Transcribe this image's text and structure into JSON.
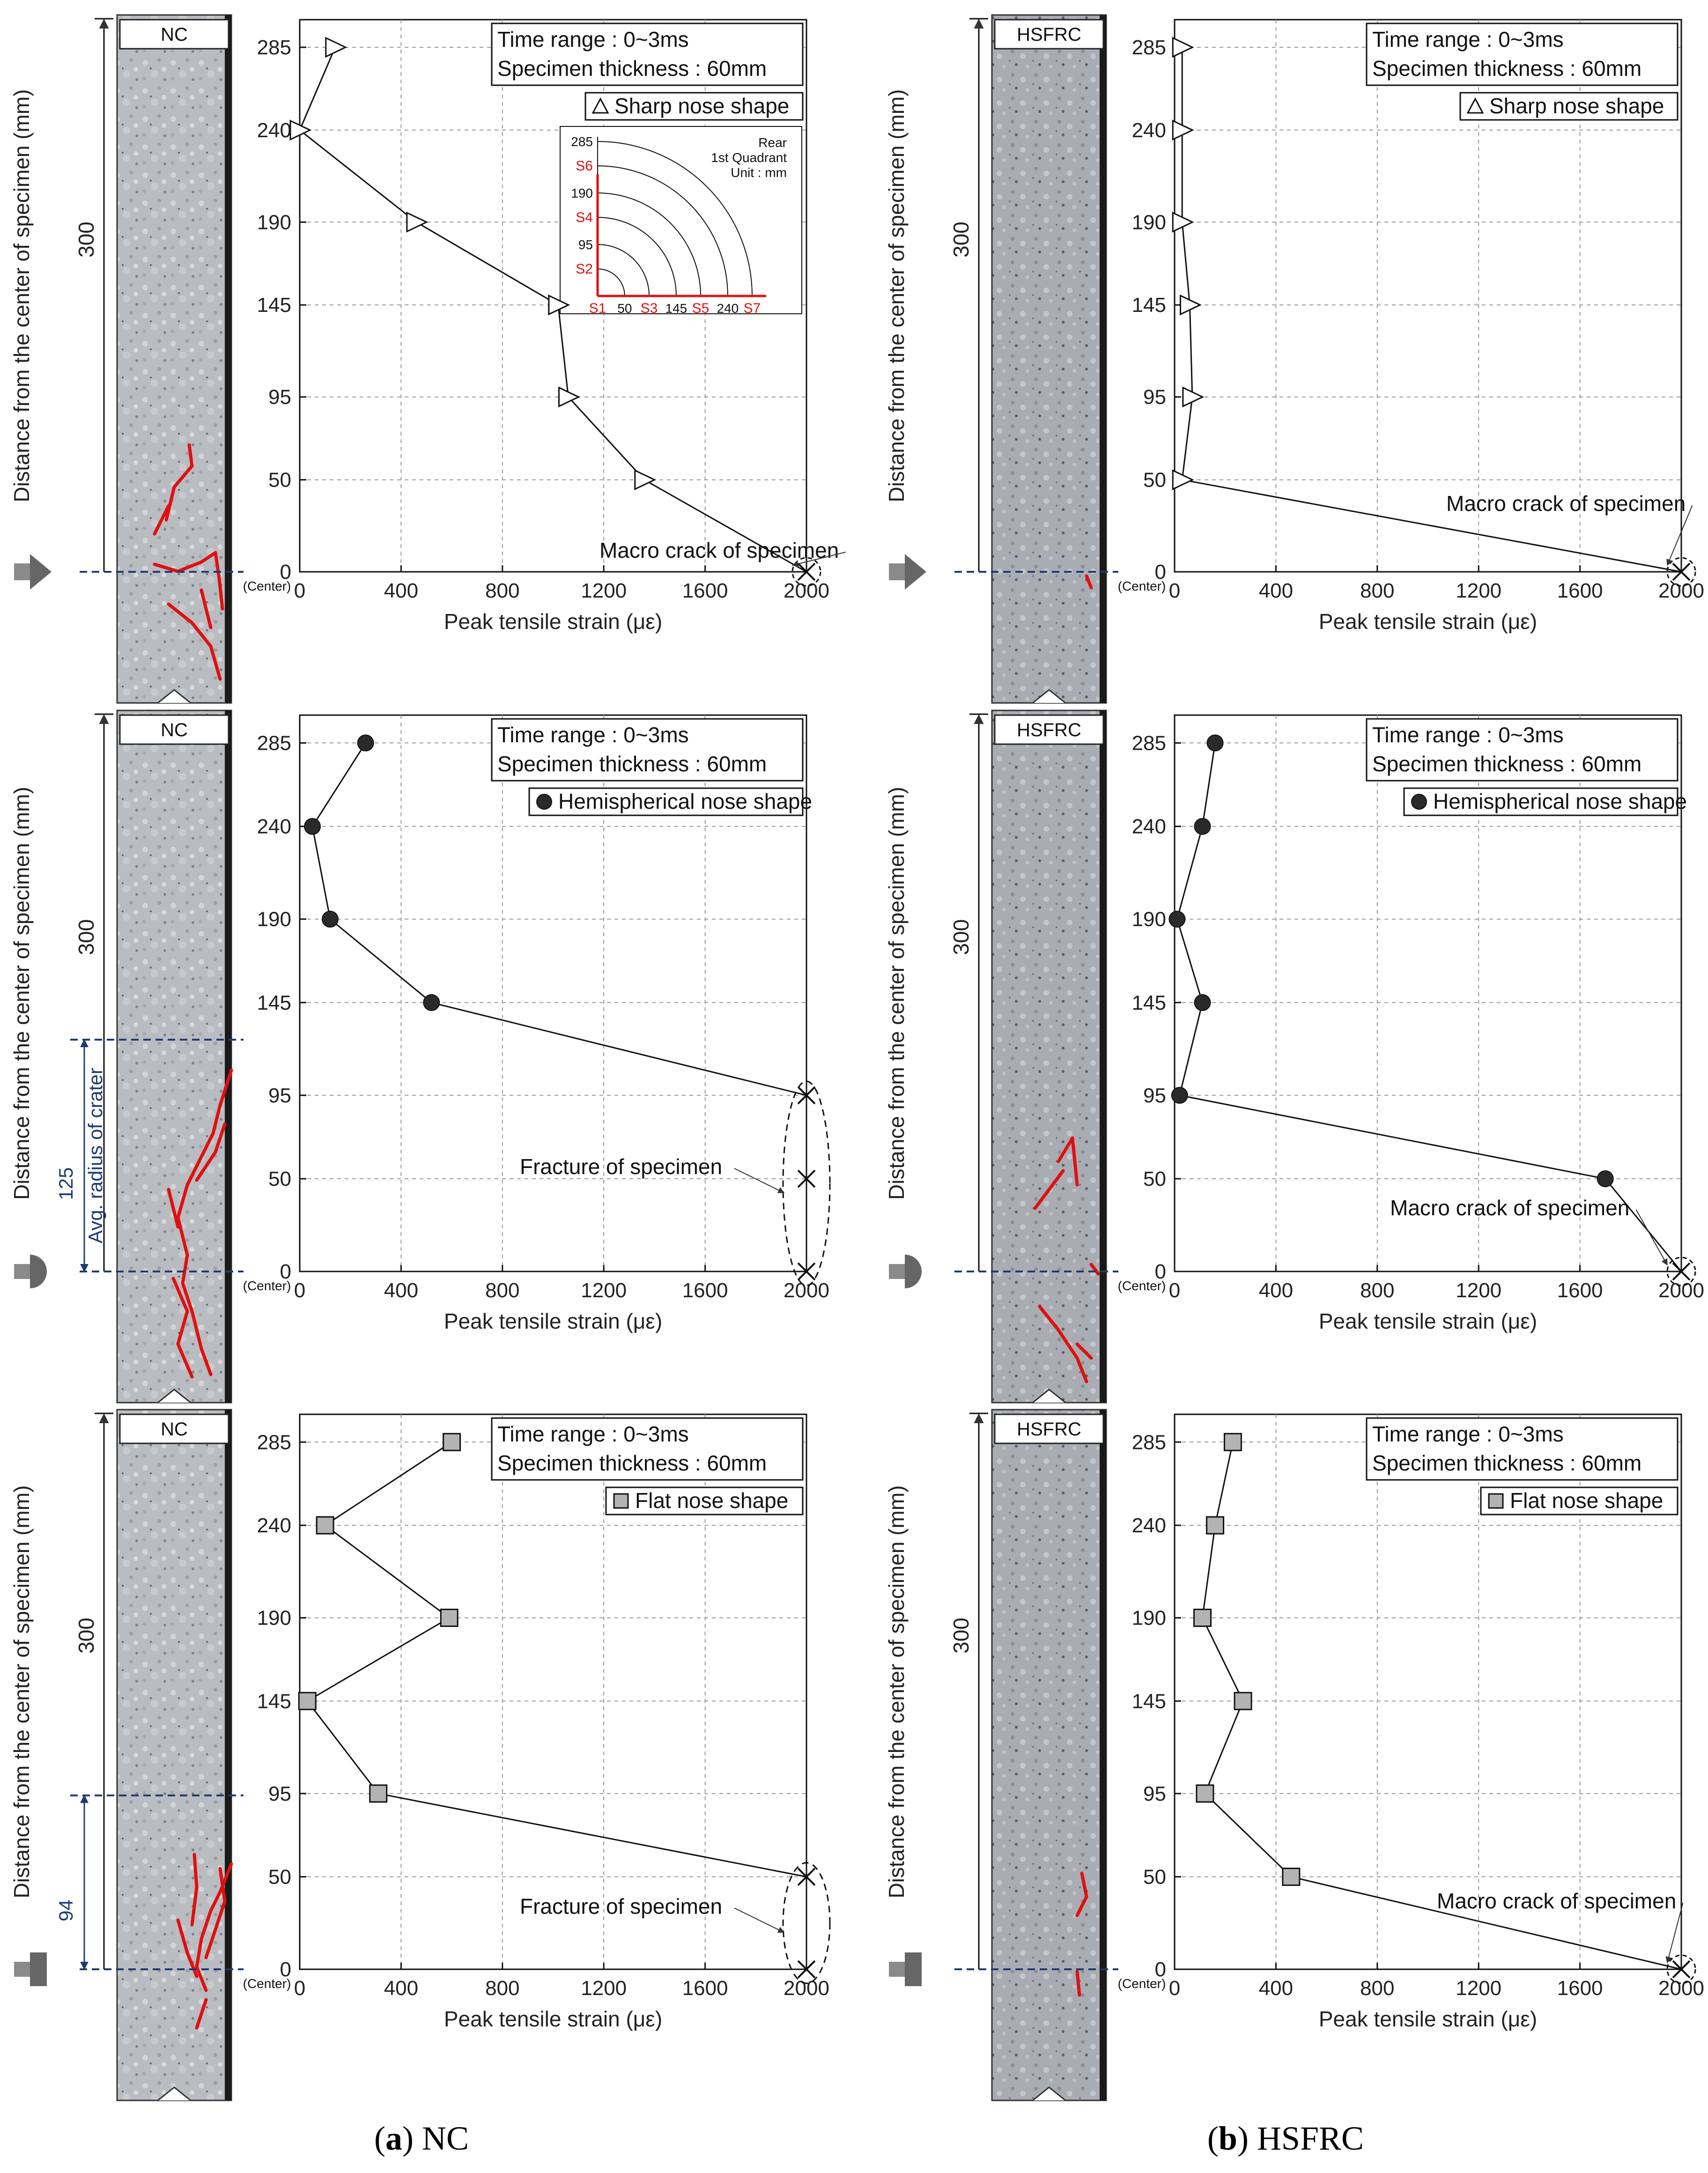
{
  "captions": {
    "a_letter": "a",
    "a_text": "NC",
    "b_letter": "b",
    "b_text": "HSFRC"
  },
  "labels": {
    "y_axis": "Distance from the center of specimen (mm)",
    "x_axis": "Peak tensile strain (με)",
    "center": "(Center)",
    "length": "300",
    "time_range": "Time range : 0~3ms",
    "thickness": "Specimen thickness : 60mm"
  },
  "inset": {
    "rear": "Rear",
    "quadrant": "1st Quadrant",
    "unit": "Unit : mm",
    "y_ticks": [
      "285",
      "S6",
      "190",
      "S4",
      "95",
      "S2"
    ],
    "x_ticks": [
      "S1",
      "50",
      "S3",
      "145",
      "S5",
      "240",
      "S7"
    ]
  },
  "colors": {
    "crack": "#e01010",
    "dashed_line": "#1f3a73",
    "marker_grey": "#b3b3b3",
    "marker_dark": "#2a2a2a"
  },
  "chart_data": [
    {
      "id": "nc-sharp",
      "type": "line",
      "specimen": "NC",
      "legend": "Sharp nose shape",
      "marker": "triangle",
      "title": "",
      "xlabel": "Peak tensile strain (με)",
      "ylabel": "Distance from the center of specimen (mm)",
      "xlim": [
        0,
        2000
      ],
      "ylim": [
        0,
        300
      ],
      "x_ticks": [
        0,
        400,
        800,
        1200,
        1600,
        2000
      ],
      "y_ticks": [
        0,
        50,
        95,
        145,
        190,
        240,
        285
      ],
      "series": [
        {
          "name": "Sharp nose shape",
          "x": [
            2000,
            1360,
            1060,
            1020,
            460,
            0,
            140
          ],
          "y": [
            0,
            50,
            95,
            145,
            190,
            240,
            285
          ]
        }
      ],
      "annotation": "Macro crack of specimen",
      "failure": "macro",
      "crater_radius": null
    },
    {
      "id": "hs-sharp",
      "type": "line",
      "specimen": "HSFRC",
      "legend": "Sharp nose shape",
      "marker": "triangle",
      "title": "",
      "xlabel": "Peak tensile strain (με)",
      "ylabel": "Distance from the center of specimen (mm)",
      "xlim": [
        0,
        2000
      ],
      "ylim": [
        0,
        300
      ],
      "x_ticks": [
        0,
        400,
        800,
        1200,
        1600,
        2000
      ],
      "y_ticks": [
        0,
        50,
        95,
        145,
        190,
        240,
        285
      ],
      "series": [
        {
          "name": "Sharp nose shape",
          "x": [
            2000,
            30,
            70,
            60,
            30,
            30,
            30
          ],
          "y": [
            0,
            50,
            95,
            145,
            190,
            240,
            285
          ]
        }
      ],
      "annotation": "Macro crack of specimen",
      "failure": "macro",
      "crater_radius": null
    },
    {
      "id": "nc-hemi",
      "type": "line",
      "specimen": "NC",
      "legend": "Hemispherical nose shape",
      "marker": "circle",
      "title": "",
      "xlabel": "Peak tensile strain (με)",
      "ylabel": "Distance from the center of specimen (mm)",
      "xlim": [
        0,
        2000
      ],
      "ylim": [
        0,
        300
      ],
      "x_ticks": [
        0,
        400,
        800,
        1200,
        1600,
        2000
      ],
      "y_ticks": [
        0,
        50,
        95,
        145,
        190,
        240,
        285
      ],
      "series": [
        {
          "name": "Hemispherical nose shape",
          "x": [
            2000,
            2000,
            2000,
            520,
            120,
            50,
            260
          ],
          "y": [
            0,
            50,
            95,
            145,
            190,
            240,
            285
          ]
        }
      ],
      "annotation": "Fracture of specimen",
      "failure": "fracture",
      "fracture_points": [
        0,
        50,
        95
      ],
      "crater_radius": 125,
      "crater_label": "Avg. radius of crater"
    },
    {
      "id": "hs-hemi",
      "type": "line",
      "specimen": "HSFRC",
      "legend": "Hemispherical nose shape",
      "marker": "circle",
      "title": "",
      "xlabel": "Peak tensile strain (με)",
      "ylabel": "Distance from the center of specimen (mm)",
      "xlim": [
        0,
        2000
      ],
      "ylim": [
        0,
        300
      ],
      "x_ticks": [
        0,
        400,
        800,
        1200,
        1600,
        2000
      ],
      "y_ticks": [
        0,
        50,
        95,
        145,
        190,
        240,
        285
      ],
      "series": [
        {
          "name": "Hemispherical nose shape",
          "x": [
            2000,
            1700,
            20,
            110,
            10,
            110,
            160
          ],
          "y": [
            0,
            50,
            95,
            145,
            190,
            240,
            285
          ]
        }
      ],
      "annotation": "Macro crack of specimen",
      "failure": "macro",
      "crater_radius": null
    },
    {
      "id": "nc-flat",
      "type": "line",
      "specimen": "NC",
      "legend": "Flat nose shape",
      "marker": "square",
      "title": "",
      "xlabel": "Peak tensile strain (με)",
      "ylabel": "Distance from the center of specimen (mm)",
      "xlim": [
        0,
        2000
      ],
      "ylim": [
        0,
        300
      ],
      "x_ticks": [
        0,
        400,
        800,
        1200,
        1600,
        2000
      ],
      "y_ticks": [
        0,
        50,
        95,
        145,
        190,
        240,
        285
      ],
      "series": [
        {
          "name": "Flat nose shape",
          "x": [
            2000,
            2000,
            310,
            30,
            590,
            100,
            600
          ],
          "y": [
            0,
            50,
            95,
            145,
            190,
            240,
            285
          ]
        }
      ],
      "annotation": "Fracture of specimen",
      "failure": "fracture",
      "fracture_points": [
        0,
        50
      ],
      "crater_radius": 94,
      "crater_label": ""
    },
    {
      "id": "hs-flat",
      "type": "line",
      "specimen": "HSFRC",
      "legend": "Flat nose shape",
      "marker": "square",
      "title": "",
      "xlabel": "Peak tensile strain (με)",
      "ylabel": "Distance from the center of specimen (mm)",
      "xlim": [
        0,
        2000
      ],
      "ylim": [
        0,
        300
      ],
      "x_ticks": [
        0,
        400,
        800,
        1200,
        1600,
        2000
      ],
      "y_ticks": [
        0,
        50,
        95,
        145,
        190,
        240,
        285
      ],
      "series": [
        {
          "name": "Flat nose shape",
          "x": [
            2000,
            460,
            120,
            270,
            110,
            160,
            230
          ],
          "y": [
            0,
            50,
            95,
            145,
            190,
            240,
            285
          ]
        }
      ],
      "annotation": "Macro crack of specimen",
      "failure": "macro",
      "crater_radius": null
    }
  ]
}
